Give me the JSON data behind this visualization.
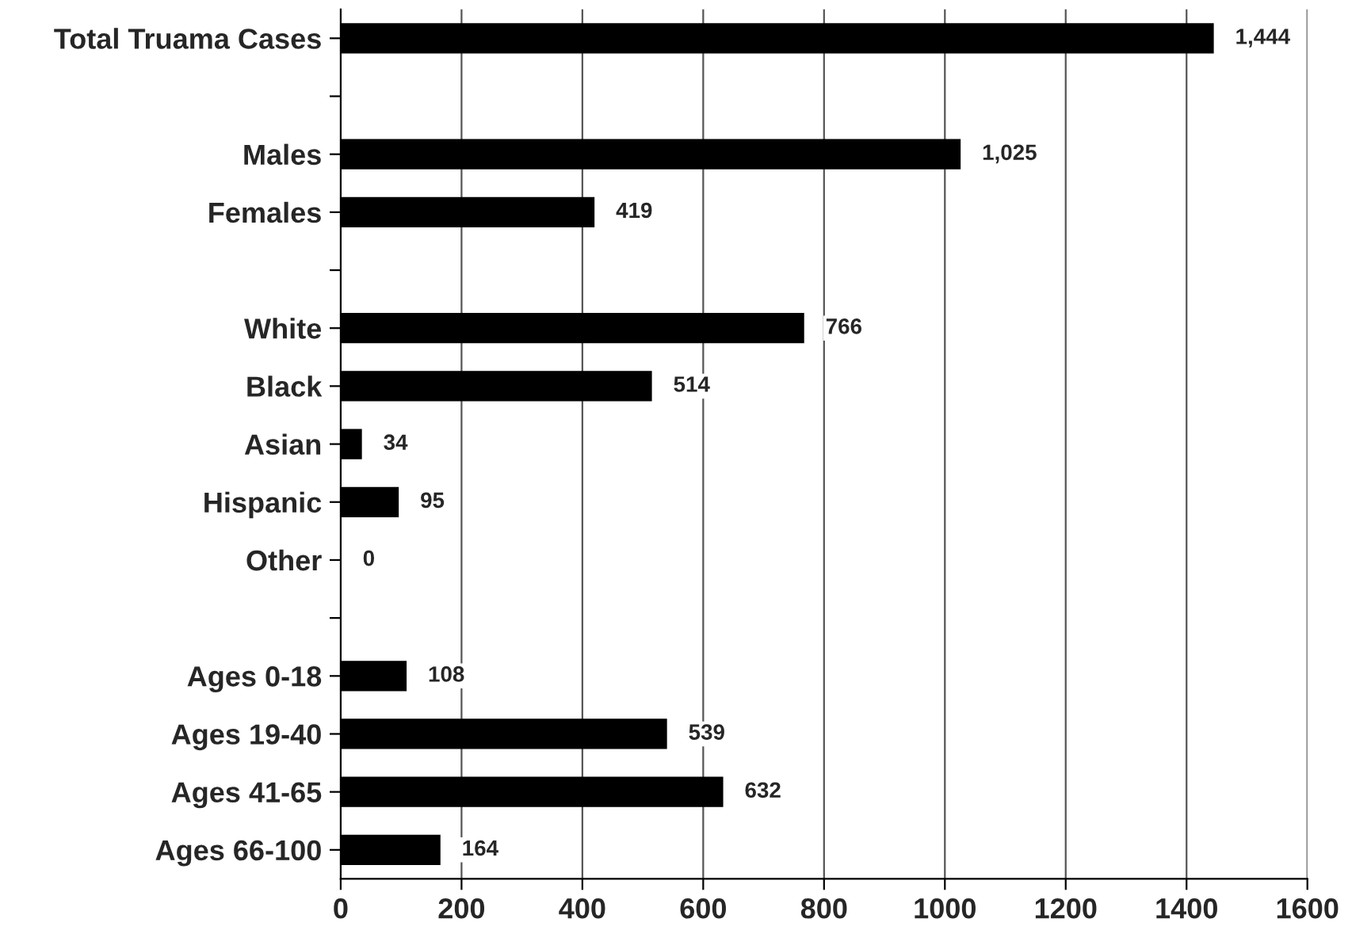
{
  "chart_data": {
    "type": "bar",
    "orientation": "horizontal",
    "categories": [
      "Total Truama Cases",
      null,
      "Males",
      "Females",
      null,
      "White",
      "Black",
      "Asian",
      "Hispanic",
      "Other",
      null,
      "Ages 0-18",
      "Ages 19-40",
      "Ages 41-65",
      "Ages 66-100"
    ],
    "values": [
      1444,
      null,
      1025,
      419,
      null,
      766,
      514,
      34,
      95,
      0,
      null,
      108,
      539,
      632,
      164
    ],
    "value_labels": [
      "1,444",
      null,
      "1,025",
      "419",
      null,
      "766",
      "514",
      "34",
      "95",
      "0",
      null,
      "108",
      "539",
      "632",
      "164"
    ],
    "color": "#000000",
    "xlim": [
      0,
      1600
    ],
    "xticks": [
      0,
      200,
      400,
      600,
      800,
      1000,
      1200,
      1400,
      1600
    ],
    "grid": "x",
    "legend": false
  }
}
